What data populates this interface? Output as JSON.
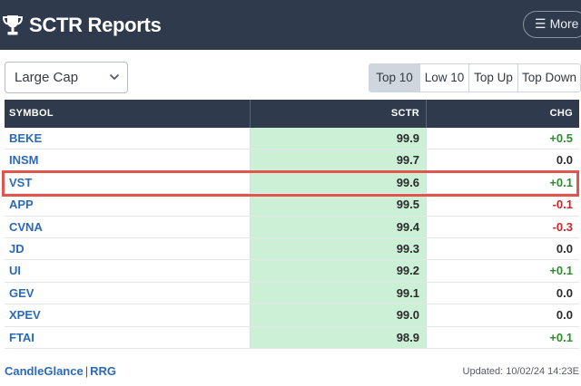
{
  "header": {
    "title": "SCTR Reports",
    "more_label": "More",
    "background": "#2f3b4c"
  },
  "filter": {
    "selected": "Large Cap"
  },
  "tabs": [
    {
      "label": "Top 10",
      "active": true
    },
    {
      "label": "Low 10",
      "active": false
    },
    {
      "label": "Top Up",
      "active": false
    },
    {
      "label": "Top Down",
      "active": false
    }
  ],
  "table": {
    "columns": {
      "symbol": "SYMBOL",
      "sctr": "SCTR",
      "chg": "CHG"
    },
    "rows": [
      {
        "symbol": "BEKE",
        "sctr": "99.9",
        "chg": "+0.5"
      },
      {
        "symbol": "INSM",
        "sctr": "99.7",
        "chg": "0.0"
      },
      {
        "symbol": "VST",
        "sctr": "99.6",
        "chg": "+0.1"
      },
      {
        "symbol": "APP",
        "sctr": "99.5",
        "chg": "-0.1"
      },
      {
        "symbol": "CVNA",
        "sctr": "99.4",
        "chg": "-0.3"
      },
      {
        "symbol": "JD",
        "sctr": "99.3",
        "chg": "0.0"
      },
      {
        "symbol": "UI",
        "sctr": "99.2",
        "chg": "+0.1"
      },
      {
        "symbol": "GEV",
        "sctr": "99.1",
        "chg": "0.0"
      },
      {
        "symbol": "XPEV",
        "sctr": "99.0",
        "chg": "0.0"
      },
      {
        "symbol": "FTAI",
        "sctr": "98.9",
        "chg": "+0.1"
      }
    ],
    "highlighted_symbol": "VST"
  },
  "footer": {
    "link_candleglance": "CandleGlance",
    "separator": "|",
    "link_rrg": "RRG",
    "updated": "Updated: 10/02/24 14:23E"
  },
  "colors": {
    "sctr_fill": "#ccf0d6",
    "positive": "#2e8b2e",
    "negative": "#c62828",
    "link": "#2a6ab8",
    "highlight": "#e0554e"
  }
}
